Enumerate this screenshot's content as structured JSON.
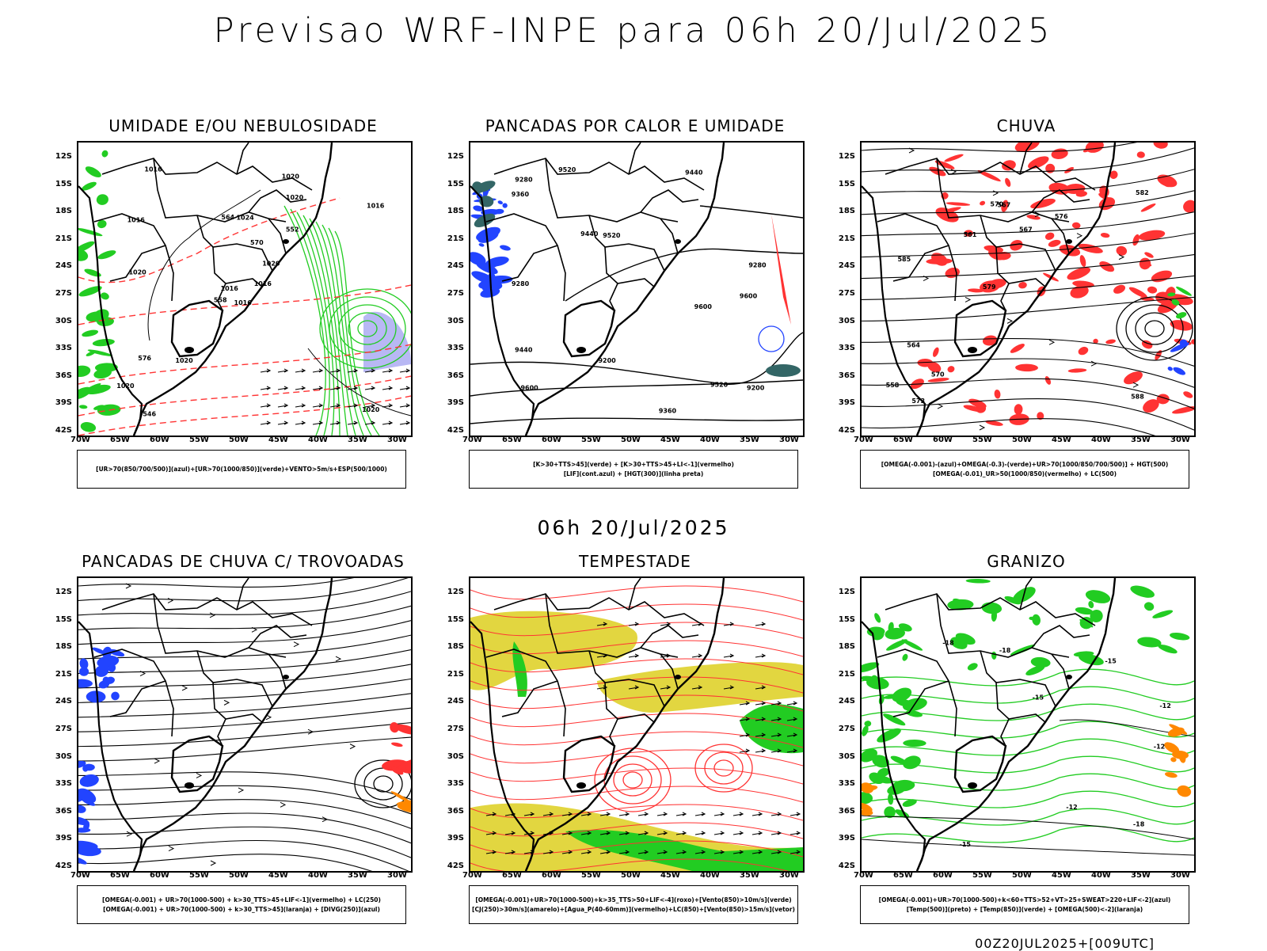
{
  "title": "Previsao WRF-INPE  para 06h 20/Jul/2025",
  "middle_title": "06h 20/Jul/2025",
  "footer": "00Z20JUL2025+[009UTC]",
  "latitude_labels": [
    "12S",
    "15S",
    "18S",
    "21S",
    "24S",
    "27S",
    "30S",
    "33S",
    "36S",
    "39S",
    "42S"
  ],
  "longitude_labels": [
    "70W",
    "65W",
    "60W",
    "55W",
    "50W",
    "45W",
    "40W",
    "35W",
    "30W"
  ],
  "colors": {
    "green": "#22cc22",
    "red": "#ff3333",
    "blue": "#2244ff",
    "yellow": "#e2d640",
    "orange": "#ff8800",
    "lavender": "#b8b8f4",
    "teal": "#336666"
  },
  "panels": [
    {
      "id": "umidade",
      "title": "UMIDADE E/OU NEBULOSIDADE",
      "legend": [
        "[UR>70(850/700/500)](azul)+[UR>70(1000/850)](verde)+VENTO>5m/s+ESP(500/1000)"
      ],
      "contour_labels": [
        "1016",
        "1016",
        "1016",
        "1020",
        "1020",
        "1020",
        "1020",
        "1024",
        "1020",
        "1016",
        "1016",
        "1020",
        "1020",
        "1016",
        "558",
        "552",
        "546",
        "564",
        "570",
        "576"
      ]
    },
    {
      "id": "pancadas-calor",
      "title": "PANCADAS POR CALOR E UMIDADE",
      "legend": [
        "[K>30+TTS>45](verde)  +  [K>30+TTS>45+LI<-1](vermelho)",
        "[LIF](cont.azul)  +  [HGT(300)](linha preta)"
      ],
      "contour_labels": [
        "9600",
        "9600",
        "9600",
        "9520",
        "9520",
        "9520",
        "9440",
        "9440",
        "9440",
        "9360",
        "9360",
        "9280",
        "9280",
        "9200",
        "9200",
        "9280"
      ]
    },
    {
      "id": "chuva",
      "title": "CHUVA",
      "legend": [
        "[OMEGA(-0.001)-(azul)+OMEGA(-0.3)-(verde)+UR>70(1000/850/700/500)]  +  HGT(500)",
        "[OMEGA(-0.01)_UR>50(1000/850)(vermelho)  +  LC(500)"
      ],
      "contour_labels": [
        "588",
        "585",
        "582",
        "579",
        "576",
        "573",
        "570",
        "567",
        "564",
        "561",
        "558",
        "570",
        "567"
      ]
    },
    {
      "id": "trovoadas",
      "title": "PANCADAS DE CHUVA C/ TROVOADAS",
      "legend": [
        "[OMEGA(-0.001)  +  UR>70(1000-500)  +  k>30_TTS>45+LIF<-1](vermelho)  +  LC(250)",
        "[OMEGA(-0.001)  +  UR>70(1000-500)  +  k>30_TTS>45](laranja)  +  [DIVG(250)](azul)"
      ],
      "contour_labels": []
    },
    {
      "id": "tempestade",
      "title": "TEMPESTADE",
      "legend": [
        "[OMEGA(-0.001)+UR>70(1000-500)+k>35_TTS>50+LIF<-4](roxo)+[Vento(850)>10m/s](verde)",
        "[CJ(250)>30m/s](amarelo)+[Agua_P(40-60mm)](vermelho)+LC(850)+[Vento(850)>15m/s](vetor)"
      ],
      "contour_labels": []
    },
    {
      "id": "granizo",
      "title": "GRANIZO",
      "legend": [
        "[OMEGA(-0.001)+UR>70(1000-500)+k<60+TTS>52+VT>25+SWEAT>220+LIF<-2](azul)",
        "[Temp(500)](preto)  +  [Temp(850)](verde)  +  [OMEGA(500)<-2](laranja)"
      ],
      "contour_labels": [
        "-12",
        "-12",
        "-15",
        "-18",
        "-18",
        "-15",
        "-15",
        "-18",
        "-12"
      ]
    }
  ]
}
